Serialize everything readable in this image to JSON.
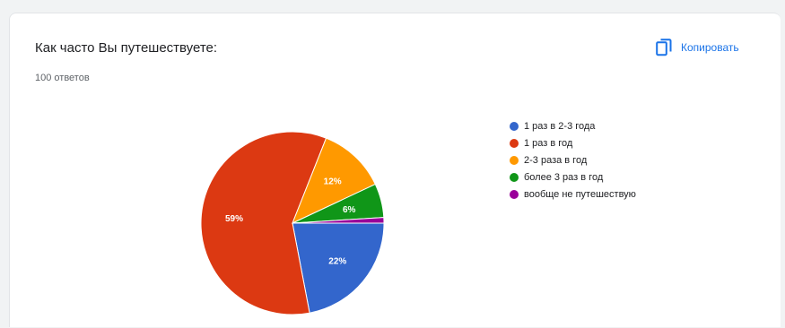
{
  "card": {
    "title": "Как часто Вы путешествуете:",
    "subtitle": "100 ответов",
    "copy_label": "Копировать"
  },
  "icons": {
    "copy": "copy-icon"
  },
  "chart_data": {
    "type": "pie",
    "title": "",
    "legend_position": "right",
    "slices": [
      {
        "label": "1 раз в 2-3 года",
        "value": 22,
        "display": "22%",
        "color": "#3366cc"
      },
      {
        "label": "1 раз в год",
        "value": 59,
        "display": "59%",
        "color": "#dc3912"
      },
      {
        "label": "2-3 раза в год",
        "value": 12,
        "display": "12%",
        "color": "#ff9900"
      },
      {
        "label": "более 3 раз в год",
        "value": 6,
        "display": "6%",
        "color": "#109618"
      },
      {
        "label": "вообще не путешествую",
        "value": 1,
        "display": "",
        "color": "#990099"
      }
    ]
  }
}
